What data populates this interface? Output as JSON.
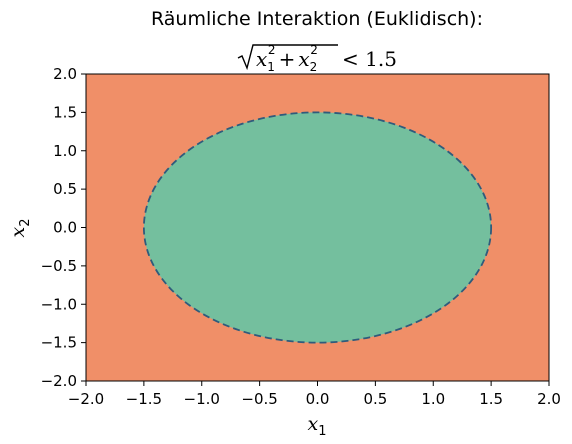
{
  "chart_data": {
    "type": "region",
    "title": "Räumliche Interaktion (Euklidisch):",
    "subtitle_formula": {
      "var": "x",
      "sub1": "1",
      "sub2": "2",
      "exp": "2",
      "plus": "+",
      "relation": "< 1.5",
      "threshold": 1.5
    },
    "xlabel": {
      "base": "x",
      "sub": "1"
    },
    "ylabel": {
      "base": "x",
      "sub": "2"
    },
    "xlim": [
      -2.0,
      2.0
    ],
    "ylim": [
      -2.0,
      2.0
    ],
    "xticks": [
      "−2.0",
      "−1.5",
      "−1.0",
      "−0.5",
      "0.0",
      "0.5",
      "1.0",
      "1.5",
      "2.0"
    ],
    "yticks": [
      "−2.0",
      "−1.5",
      "−1.0",
      "−0.5",
      "0.0",
      "0.5",
      "1.0",
      "1.5",
      "2.0"
    ],
    "xtick_values": [
      -2.0,
      -1.5,
      -1.0,
      -0.5,
      0.0,
      0.5,
      1.0,
      1.5,
      2.0
    ],
    "ytick_values": [
      -2.0,
      -1.5,
      -1.0,
      -0.5,
      0.0,
      0.5,
      1.0,
      1.5,
      2.0
    ],
    "circle": {
      "center": [
        0.0,
        0.0
      ],
      "radius": 1.5,
      "style": "dashed"
    },
    "colors": {
      "inside": "#74bf9e",
      "outside": "#f08f68",
      "boundary": "#2f5b7c"
    },
    "grid": false
  }
}
